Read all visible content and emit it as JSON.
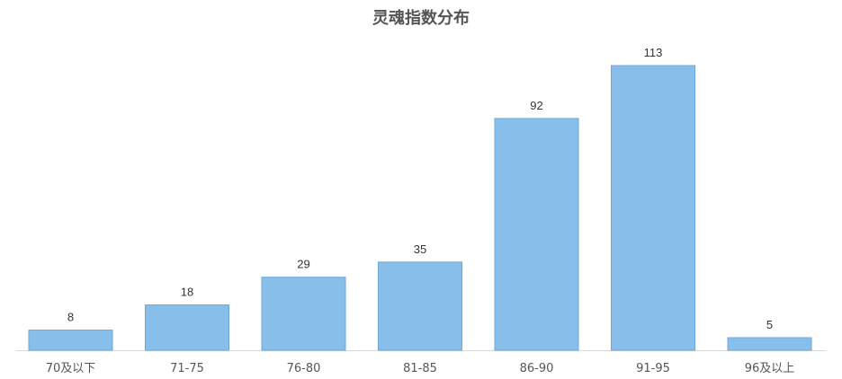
{
  "chart_data": {
    "type": "bar",
    "title": "灵魂指数分布",
    "categories": [
      "70及以下",
      "71-75",
      "76-80",
      "81-85",
      "86-90",
      "91-95",
      "96及以上"
    ],
    "values": [
      8,
      18,
      29,
      35,
      92,
      113,
      5
    ],
    "xlabel": "",
    "ylabel": "",
    "ylim": [
      0,
      113
    ],
    "grid": false,
    "data_labels": true,
    "colors": {
      "bar": "#87BFEA",
      "bar_border": "#6FA8D8",
      "axis": "#D9D9D9",
      "text": "#333333"
    }
  }
}
